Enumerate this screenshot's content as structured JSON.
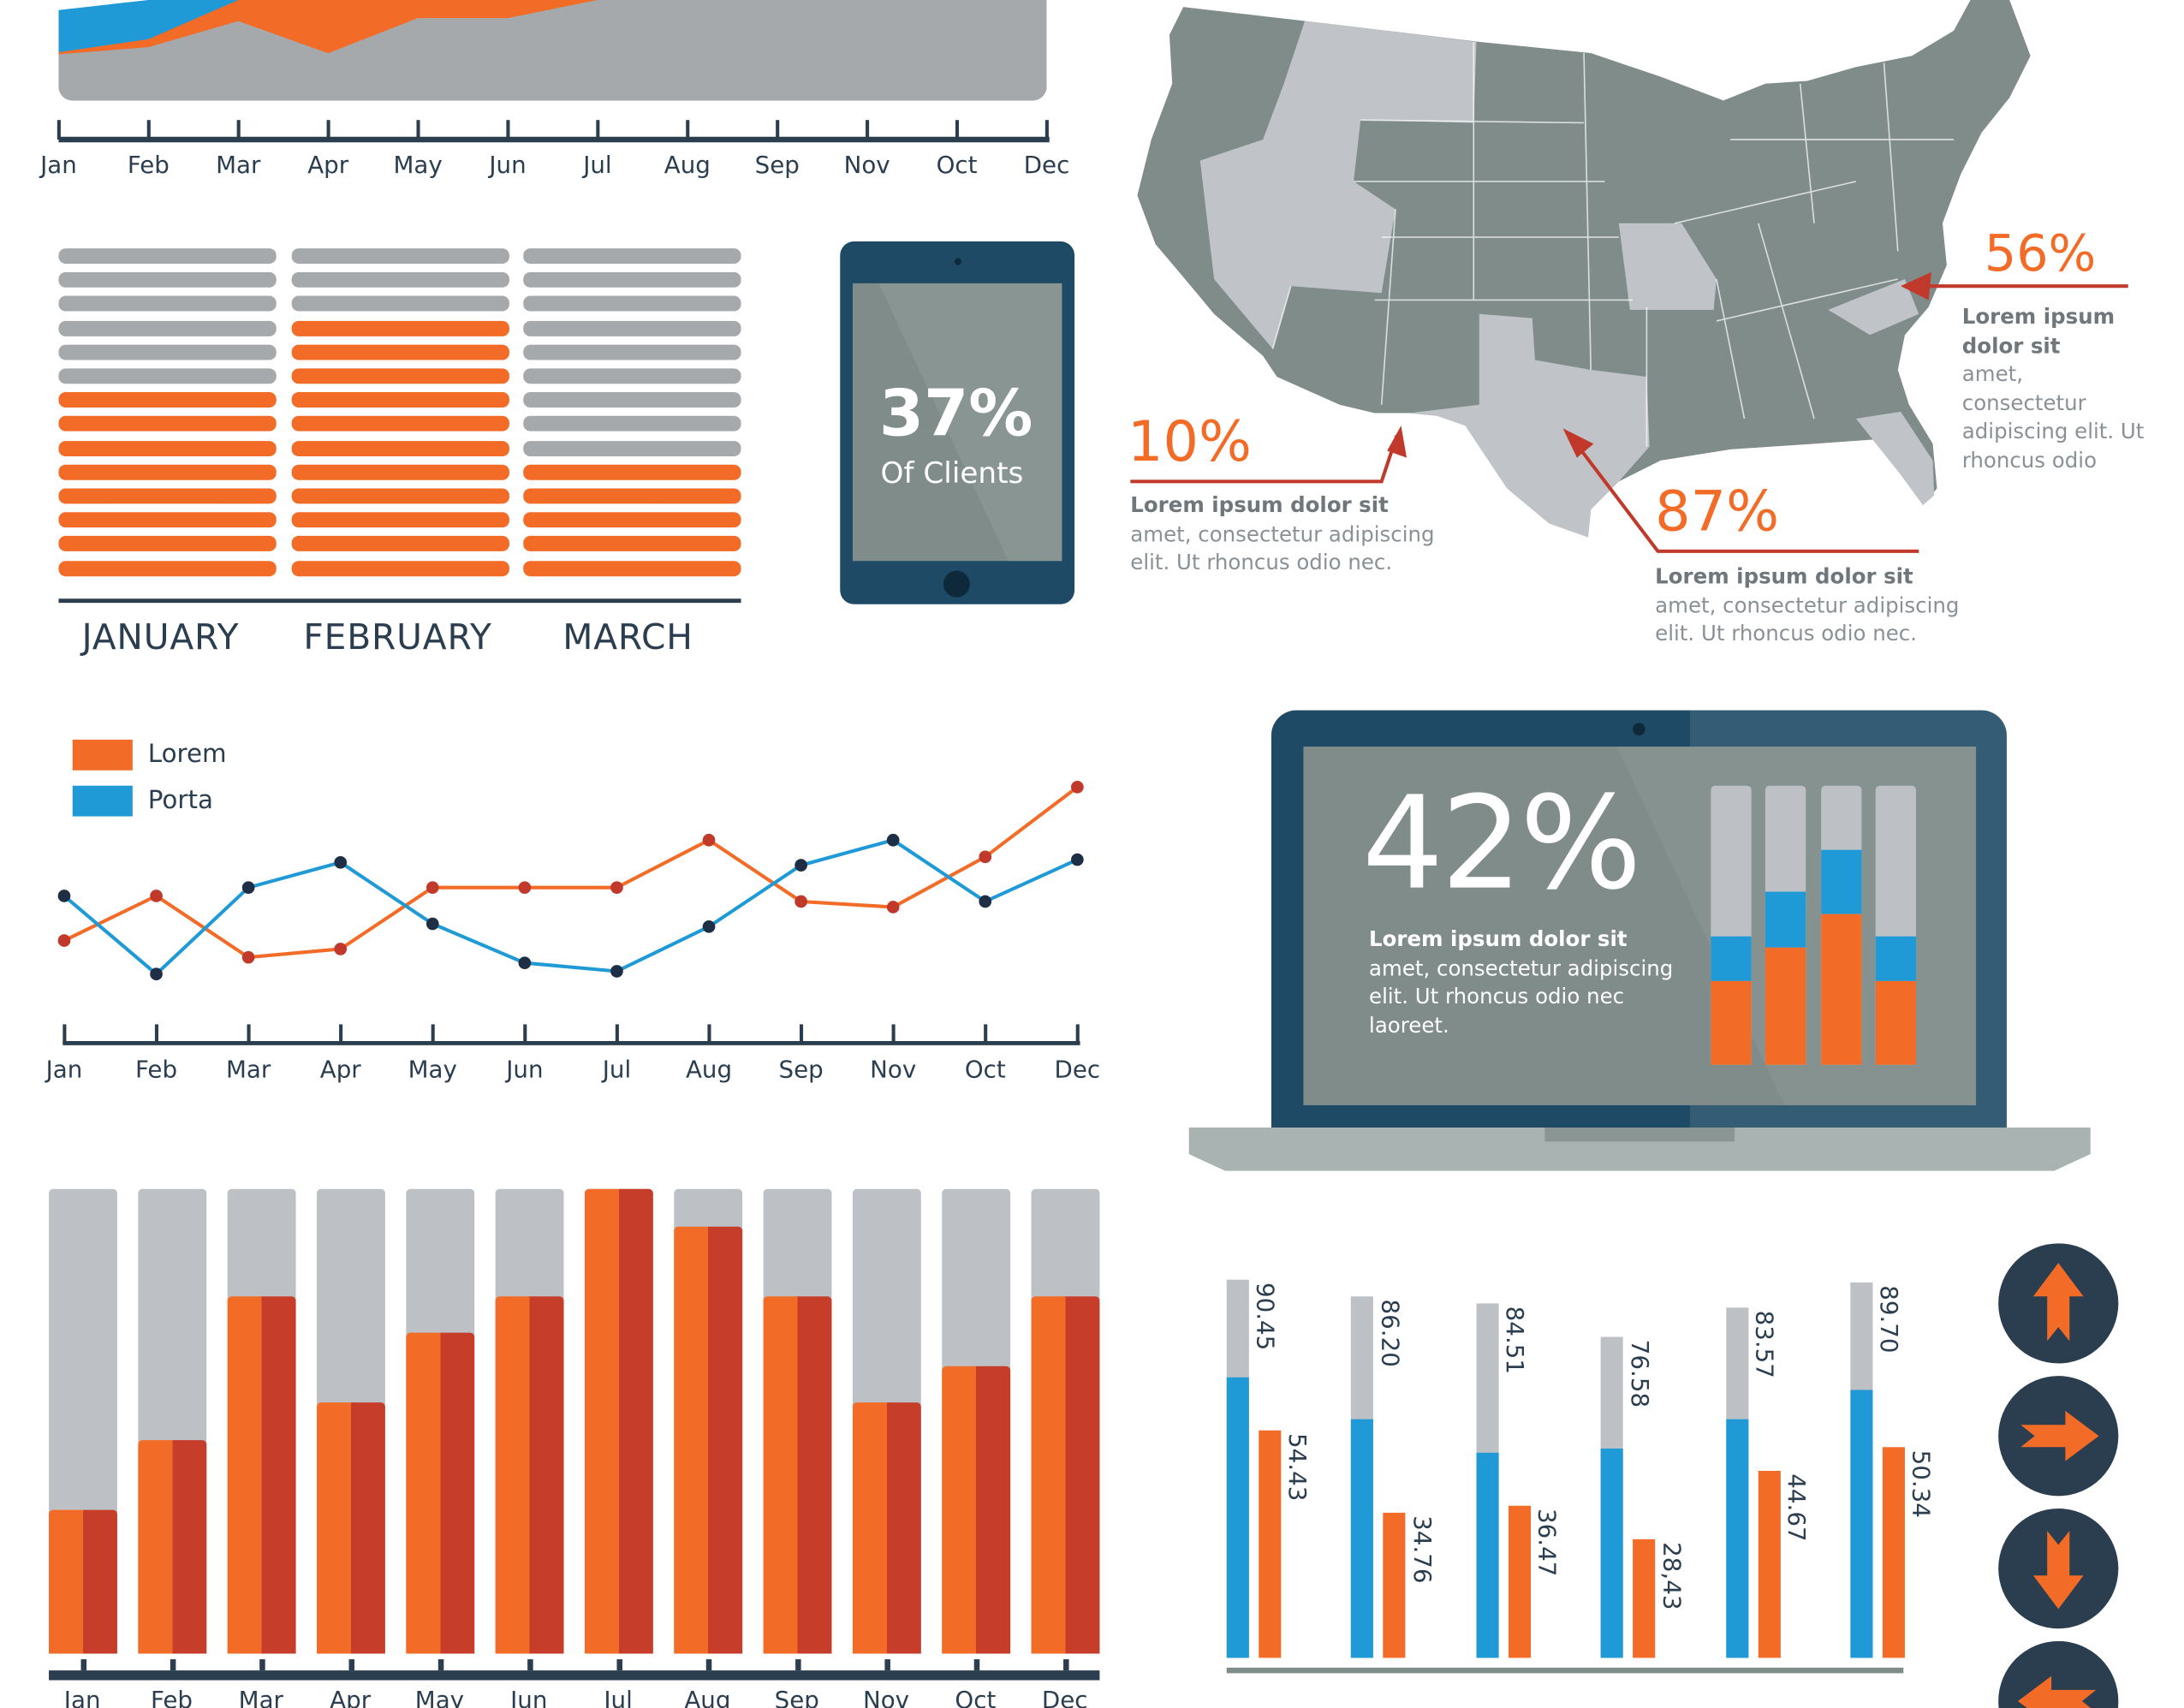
{
  "colors": {
    "orange": "#f26b27",
    "orange_dark": "#c63d2a",
    "blue": "#1f9ad6",
    "gray": "#a6a9ac",
    "light_gray": "#bdc1c6",
    "navy": "#2b3e50",
    "device": "#1e4a66",
    "screen": "#7f8c8a"
  },
  "tablet": {
    "value": "37%",
    "caption": "Of Clients"
  },
  "map": {
    "callouts": [
      {
        "value": "10%",
        "title": "Lorem ipsum dolor sit",
        "lines": [
          "amet, consectetur adipiscing",
          "elit. Ut rhoncus odio nec."
        ]
      },
      {
        "value": "87%",
        "title": "Lorem ipsum dolor sit",
        "lines": [
          "amet, consectetur adipiscing",
          "elit. Ut rhoncus odio nec."
        ]
      },
      {
        "value": "56%",
        "title": "Lorem ipsum",
        "title2": "dolor sit",
        "lines": [
          "amet,",
          "consectetur",
          "adipiscing elit. Ut",
          "rhoncus odio"
        ]
      }
    ]
  },
  "laptop": {
    "value": "42%",
    "title": "Lorem ipsum dolor sit",
    "lines": [
      "amet, consectetur adipiscing",
      "elit. Ut rhoncus odio nec",
      "laoreet."
    ]
  },
  "nav_buttons": [
    {
      "icon": "arrow-up-icon"
    },
    {
      "icon": "arrow-right-icon"
    },
    {
      "icon": "arrow-down-icon"
    },
    {
      "icon": "arrow-left-icon"
    }
  ],
  "chart_data": [
    {
      "type": "area",
      "categories": [
        "Jan",
        "Feb",
        "Mar",
        "Apr",
        "May",
        "Jun",
        "Jul",
        "Aug",
        "Sep",
        "Nov",
        "Oct",
        "Dec"
      ],
      "series": [
        {
          "color": "#a6a9ac",
          "values": [
            46,
            53,
            79,
            47,
            82,
            82,
            100,
            100,
            100,
            100,
            100,
            100
          ]
        },
        {
          "color": "#f26b27",
          "values": [
            48,
            61,
            100,
            100,
            100,
            100,
            100,
            100,
            100,
            100,
            100,
            100
          ]
        },
        {
          "color": "#1f9ad6",
          "values": [
            90,
            100,
            100,
            100,
            100,
            100,
            100,
            100,
            100,
            100,
            100,
            100
          ]
        }
      ]
    },
    {
      "type": "bar",
      "categories": [
        "JANUARY",
        "FEBRUARY",
        "MARCH"
      ],
      "total_segments": 14,
      "values": [
        8,
        11,
        5
      ]
    },
    {
      "type": "line",
      "categories": [
        "Jan",
        "Feb",
        "Mar",
        "Apr",
        "May",
        "Jun",
        "Jul",
        "Aug",
        "Sep",
        "Nov",
        "Oct",
        "Dec"
      ],
      "legend": "top-left",
      "series": [
        {
          "name": "Lorem",
          "color": "#f26b27",
          "values": [
            38,
            54,
            32,
            35,
            57,
            57,
            57,
            74,
            52,
            50,
            68,
            93
          ]
        },
        {
          "name": "Porta",
          "color": "#1f9ad6",
          "values": [
            54,
            26,
            57,
            66,
            44,
            30,
            27,
            43,
            65,
            74,
            52,
            67
          ]
        }
      ]
    },
    {
      "type": "bar",
      "categories": [
        "Jan",
        "Feb",
        "Mar",
        "Apr",
        "May",
        "Jun",
        "Jul",
        "Aug",
        "Sep",
        "Nov",
        "Oct",
        "Dec"
      ],
      "ylim": [
        0,
        100
      ],
      "values": [
        31,
        46,
        77,
        54,
        69,
        77,
        100,
        92,
        77,
        54,
        62,
        77
      ]
    },
    {
      "type": "bar",
      "stacked": true,
      "ylim": [
        0,
        100
      ],
      "series": [
        {
          "color": "#f26b27",
          "values": [
            30,
            42,
            54,
            30
          ]
        },
        {
          "color": "#1f9ad6",
          "values": [
            16,
            20,
            23,
            16
          ]
        }
      ]
    },
    {
      "type": "bar",
      "grouped": true,
      "series": [
        {
          "color": "#bdc1c6",
          "values": [
            90.45,
            86.2,
            84.51,
            76.58,
            83.57,
            89.7
          ],
          "labels": [
            "90.45",
            "86.20",
            "84.51",
            "76.58",
            "83.57",
            "89.70"
          ]
        },
        {
          "color": "#1f9ad6",
          "values": [
            67,
            57,
            49,
            50,
            57,
            64
          ]
        },
        {
          "color": "#f26b27",
          "values": [
            54.43,
            34.76,
            36.47,
            28.43,
            44.67,
            50.34
          ],
          "labels": [
            "54.43",
            "34.76",
            "36.47",
            "28,43",
            "44.67",
            "50.34"
          ]
        }
      ]
    }
  ]
}
